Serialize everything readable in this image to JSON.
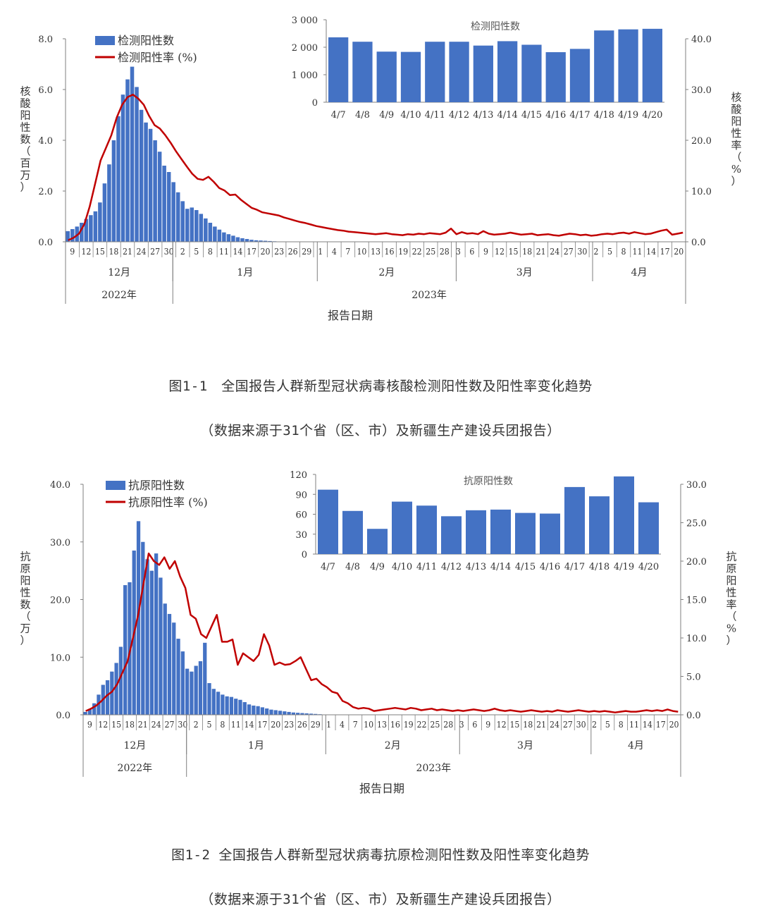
{
  "chart_data": [
    {
      "type": "bar+line",
      "legend": {
        "bar": "检测阳性数",
        "line": "检测阳性率 (%)",
        "position": "top-left"
      },
      "left_axis": {
        "label": "核酸阳性数（百万）",
        "ylim": [
          0,
          8
        ],
        "ticks": [
          "0.0",
          "2.0",
          "4.0",
          "6.0",
          "8.0"
        ]
      },
      "right_axis": {
        "label": "核酸阳性率（%）",
        "ylim": [
          0,
          40
        ],
        "ticks": [
          "0.0",
          "10.0",
          "20.0",
          "30.0",
          "40.0"
        ]
      },
      "xlabel": "报告日期",
      "x_ticks": [
        "9",
        "12",
        "15",
        "18",
        "21",
        "24",
        "27",
        "30",
        "2",
        "5",
        "8",
        "11",
        "14",
        "17",
        "20",
        "23",
        "26",
        "29",
        "1",
        "4",
        "7",
        "10",
        "13",
        "16",
        "19",
        "22",
        "25",
        "28",
        "3",
        "6",
        "9",
        "12",
        "15",
        "18",
        "21",
        "24",
        "27",
        "30",
        "2",
        "5",
        "8",
        "11",
        "14",
        "17",
        "20"
      ],
      "months": [
        "12月",
        "1月",
        "2月",
        "3月",
        "4月"
      ],
      "years": [
        "2022年",
        "2023年"
      ],
      "bar_values": [
        0.42,
        0.5,
        0.6,
        0.75,
        0.9,
        1.05,
        1.2,
        1.55,
        2.3,
        3.05,
        4.0,
        4.95,
        5.8,
        6.4,
        6.9,
        6.1,
        5.2,
        4.7,
        4.45,
        4.0,
        3.55,
        3.0,
        2.75,
        2.35,
        1.95,
        1.6,
        1.3,
        1.35,
        1.25,
        1.1,
        0.92,
        0.75,
        0.6,
        0.48,
        0.37,
        0.3,
        0.24,
        0.18,
        0.14,
        0.11,
        0.08,
        0.06,
        0.05,
        0.04,
        0.03,
        0.02,
        0.01
      ],
      "line_values": [
        0.3,
        0.8,
        1.6,
        3.5,
        7,
        11.5,
        16,
        18.5,
        21,
        24.5,
        27,
        28.5,
        29,
        28.2,
        27,
        24.8,
        23,
        22.3,
        21,
        19.5,
        17.8,
        16.3,
        14.8,
        13.4,
        12.4,
        12.2,
        12.8,
        11.8,
        10.6,
        10.1,
        9.2,
        9.3,
        8.3,
        7.5,
        6.7,
        6.3,
        5.8,
        5.6,
        5.4,
        5.2,
        4.8,
        4.5,
        4.2,
        3.9,
        3.7,
        3.4,
        3.1,
        2.9,
        2.7,
        2.5,
        2.3,
        2.2,
        2,
        1.9,
        1.8,
        1.7,
        1.6,
        1.5,
        1.6,
        1.7,
        1.5,
        1.4,
        1.3,
        1.5,
        1.4,
        1.6,
        1.5,
        1.7,
        1.6,
        1.5,
        1.8,
        2.6,
        1.5,
        1.9,
        1.6,
        1.7,
        1.5,
        2.1,
        1.6,
        1.4,
        1.5,
        1.6,
        1.8,
        1.6,
        1.4,
        1.5,
        1.6,
        1.3,
        1.4,
        1.5,
        1.3,
        1.2,
        1.4,
        1.6,
        1.5,
        1.3,
        1.4,
        1.2,
        1.3,
        1.5,
        1.6,
        1.5,
        1.7,
        1.8,
        1.6,
        1.9,
        1.7,
        1.5,
        1.6,
        1.9,
        2.2,
        2.4,
        1.4,
        1.6,
        1.8
      ],
      "inset": {
        "title": "检测阳性数",
        "categories": [
          "4/7",
          "4/8",
          "4/9",
          "4/10",
          "4/11",
          "4/12",
          "4/13",
          "4/14",
          "4/15",
          "4/16",
          "4/17",
          "4/18",
          "4/19",
          "4/20"
        ],
        "values": [
          2360,
          2200,
          1840,
          1830,
          2200,
          2200,
          2060,
          2220,
          2090,
          1820,
          1940,
          2610,
          2650,
          2670
        ],
        "ylim": [
          0,
          3000
        ],
        "ticks": [
          "0",
          "1 000",
          "2 000",
          "3 000"
        ]
      }
    },
    {
      "type": "bar+line",
      "legend": {
        "bar": "抗原阳性数",
        "line": "抗原阳性率 (%)",
        "position": "top-left"
      },
      "left_axis": {
        "label": "抗原阳性数（万）",
        "ylim": [
          0,
          40
        ],
        "ticks": [
          "0.0",
          "10.0",
          "20.0",
          "30.0",
          "40.0"
        ]
      },
      "right_axis": {
        "label": "抗原阳性率（%）",
        "ylim": [
          0,
          30
        ],
        "ticks": [
          "0.0",
          "5.0",
          "10.0",
          "15.0",
          "20.0",
          "25.0",
          "30.0"
        ]
      },
      "xlabel": "报告日期",
      "x_ticks": [
        "9",
        "12",
        "15",
        "18",
        "21",
        "24",
        "27",
        "30",
        "2",
        "5",
        "8",
        "11",
        "14",
        "17",
        "20",
        "23",
        "26",
        "29",
        "1",
        "4",
        "7",
        "10",
        "13",
        "16",
        "19",
        "22",
        "25",
        "28",
        "3",
        "6",
        "9",
        "12",
        "15",
        "18",
        "21",
        "24",
        "27",
        "30",
        "2",
        "5",
        "8",
        "11",
        "14",
        "17",
        "20"
      ],
      "months": [
        "12月",
        "1月",
        "2月",
        "3月",
        "4月"
      ],
      "years": [
        "2022年",
        "2023年"
      ],
      "bar_values": [
        0.5,
        1,
        2,
        3.5,
        5.2,
        6,
        7.5,
        9,
        11.8,
        22.5,
        23,
        28.5,
        33.6,
        30,
        27,
        25,
        28,
        23.8,
        19.3,
        17.5,
        16,
        13.2,
        11,
        8,
        7.5,
        8.5,
        9.3,
        12.5,
        5.5,
        4.5,
        4,
        3.5,
        3.2,
        3.1,
        2.8,
        2.6,
        2.2,
        1.8,
        1.6,
        1.5,
        1.3,
        1.1,
        0.9,
        0.8,
        0.7,
        0.6,
        0.5,
        0.4,
        0.35,
        0.3,
        0.25,
        0.2,
        0.15,
        0.1
      ],
      "line_values": [
        0.5,
        0.8,
        1.2,
        1.8,
        2.5,
        3,
        4,
        5.5,
        7,
        10,
        13,
        17,
        21,
        20,
        19.5,
        20.5,
        19,
        20,
        18,
        16.5,
        13,
        12.5,
        10.5,
        10,
        11.5,
        13,
        9.5,
        9.5,
        9.8,
        6.5,
        8,
        7.5,
        7,
        7.8,
        10.5,
        9,
        6.5,
        6.8,
        6.5,
        6.6,
        7,
        7.5,
        6,
        4.5,
        4.7,
        4,
        3.6,
        3,
        2.8,
        1.8,
        1.5,
        1,
        0.8,
        0.9,
        0.8,
        0.5,
        0.6,
        0.7,
        0.8,
        0.9,
        0.8,
        0.7,
        0.9,
        0.8,
        0.6,
        0.7,
        0.8,
        0.6,
        0.7,
        0.6,
        0.5,
        0.6,
        0.5,
        0.6,
        0.7,
        0.6,
        0.5,
        0.6,
        0.8,
        0.6,
        0.5,
        0.6,
        0.5,
        0.4,
        0.5,
        0.6,
        0.5,
        0.4,
        0.5,
        0.4,
        0.6,
        0.5,
        0.4,
        0.5,
        0.6,
        0.5,
        0.4,
        0.5,
        0.4,
        0.5,
        0.4,
        0.3,
        0.4,
        0.5,
        0.4,
        0.4,
        0.5,
        0.6,
        0.5,
        0.6,
        0.5,
        0.7,
        0.5,
        0.4
      ],
      "inset": {
        "title": "抗原阳性数",
        "categories": [
          "4/7",
          "4/8",
          "4/9",
          "4/10",
          "4/11",
          "4/12",
          "4/13",
          "4/14",
          "4/15",
          "4/16",
          "4/17",
          "4/18",
          "4/19",
          "4/20"
        ],
        "values": [
          97,
          65,
          38,
          79,
          73,
          57,
          66,
          67,
          62,
          61,
          101,
          87,
          117,
          78
        ],
        "ylim": [
          0,
          120
        ],
        "ticks": [
          "0",
          "30",
          "60",
          "90",
          "120"
        ]
      }
    }
  ],
  "captions": {
    "fig1_title": "图1-1　全国报告人群新型冠状病毒核酸检测阳性数及阳性率变化趋势",
    "fig1_source": "（数据来源于31个省（区、市）及新疆生产建设兵团报告）",
    "fig2_title": "图1-2 全国报告人群新型冠状病毒抗原检测阳性数及阳性率变化趋势",
    "fig2_source": "（数据来源于31个省（区、市）及新疆生产建设兵团报告）"
  },
  "colors": {
    "bar": "#4472C4",
    "line": "#C00000",
    "axis": "#7f7f7f",
    "text": "#333333"
  }
}
